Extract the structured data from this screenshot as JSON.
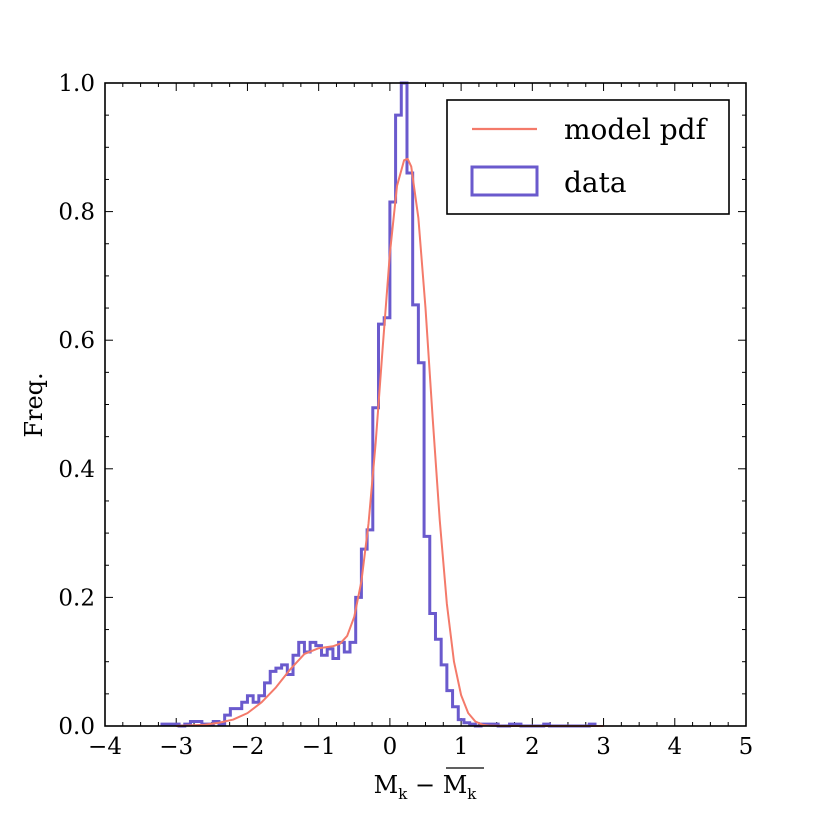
{
  "chart_data": {
    "type": "histogram",
    "xlabel": "M_k − overline(M_k)",
    "ylabel": "Freq.",
    "xlim": [
      -4,
      5
    ],
    "ylim": [
      0,
      1.0
    ],
    "xticks": [
      -4,
      -3,
      -2,
      -1,
      0,
      1,
      2,
      3,
      4,
      5
    ],
    "yticks": [
      0.0,
      0.2,
      0.4,
      0.6,
      0.8,
      1.0
    ],
    "xtick_labels": [
      "−4",
      "−3",
      "−2",
      "−1",
      "0",
      "1",
      "2",
      "3",
      "4",
      "5"
    ],
    "ytick_labels": [
      "0.0",
      "0.2",
      "0.4",
      "0.6",
      "0.8",
      "1.0"
    ],
    "legend": {
      "location": "top-right",
      "entries": [
        {
          "label": "model pdf",
          "kind": "line",
          "color": "#f47a6a"
        },
        {
          "label": "data",
          "kind": "histogram",
          "color": "#6a5acd"
        }
      ]
    },
    "series": [
      {
        "name": "data",
        "kind": "step-histogram",
        "color": "#6a5acd",
        "bin_edges": [
          -3.2,
          -3.12,
          -3.04,
          -2.96,
          -2.88,
          -2.8,
          -2.72,
          -2.64,
          -2.56,
          -2.48,
          -2.4,
          -2.32,
          -2.24,
          -2.16,
          -2.08,
          -2.0,
          -1.92,
          -1.84,
          -1.76,
          -1.68,
          -1.6,
          -1.52,
          -1.44,
          -1.36,
          -1.28,
          -1.2,
          -1.12,
          -1.04,
          -0.96,
          -0.88,
          -0.8,
          -0.72,
          -0.64,
          -0.56,
          -0.48,
          -0.4,
          -0.32,
          -0.24,
          -0.16,
          -0.08,
          0.0,
          0.08,
          0.16,
          0.24,
          0.32,
          0.4,
          0.48,
          0.56,
          0.64,
          0.72,
          0.8,
          0.88,
          0.96,
          1.04,
          1.12,
          1.2,
          1.28,
          1.36,
          1.44,
          1.52,
          1.6,
          1.68,
          1.76,
          1.84,
          1.92,
          2.0,
          2.08,
          2.16,
          2.24,
          2.32,
          2.4,
          2.48,
          2.56,
          2.64,
          2.72,
          2.8,
          2.88
        ],
        "values": [
          0.003,
          0.003,
          0.003,
          0.0,
          0.003,
          0.007,
          0.007,
          0.003,
          0.003,
          0.007,
          0.003,
          0.017,
          0.027,
          0.027,
          0.037,
          0.047,
          0.037,
          0.047,
          0.067,
          0.085,
          0.09,
          0.095,
          0.08,
          0.11,
          0.13,
          0.115,
          0.13,
          0.125,
          0.11,
          0.12,
          0.105,
          0.13,
          0.115,
          0.13,
          0.2,
          0.275,
          0.305,
          0.495,
          0.625,
          0.635,
          0.815,
          0.95,
          1.0,
          0.86,
          0.655,
          0.565,
          0.295,
          0.175,
          0.135,
          0.095,
          0.055,
          0.03,
          0.01,
          0.005,
          0.003,
          0.0,
          0.003,
          0.003,
          0.003,
          0.0,
          0.0,
          0.003,
          0.003,
          0.0,
          0.0,
          0.0,
          0.0,
          0.003,
          0.0,
          0.0,
          0.0,
          0.0,
          0.0,
          0.0,
          0.0,
          0.003
        ]
      },
      {
        "name": "model pdf",
        "kind": "line",
        "color": "#f47a6a",
        "x": [
          -3.0,
          -2.8,
          -2.6,
          -2.4,
          -2.2,
          -2.0,
          -1.8,
          -1.6,
          -1.4,
          -1.2,
          -1.0,
          -0.8,
          -0.7,
          -0.6,
          -0.5,
          -0.4,
          -0.3,
          -0.2,
          -0.1,
          0.0,
          0.1,
          0.2,
          0.25,
          0.3,
          0.4,
          0.5,
          0.6,
          0.7,
          0.8,
          0.9,
          1.0,
          1.1,
          1.2,
          1.3,
          1.4,
          1.6,
          1.8,
          2.0,
          2.5,
          3.0
        ],
        "y": [
          0.0,
          0.001,
          0.002,
          0.005,
          0.01,
          0.02,
          0.037,
          0.06,
          0.088,
          0.112,
          0.121,
          0.124,
          0.128,
          0.14,
          0.17,
          0.225,
          0.315,
          0.44,
          0.59,
          0.735,
          0.84,
          0.88,
          0.882,
          0.87,
          0.79,
          0.65,
          0.48,
          0.32,
          0.19,
          0.1,
          0.048,
          0.02,
          0.007,
          0.002,
          0.0005,
          0.0,
          0.0,
          0.0,
          0.0,
          0.0
        ]
      }
    ]
  }
}
